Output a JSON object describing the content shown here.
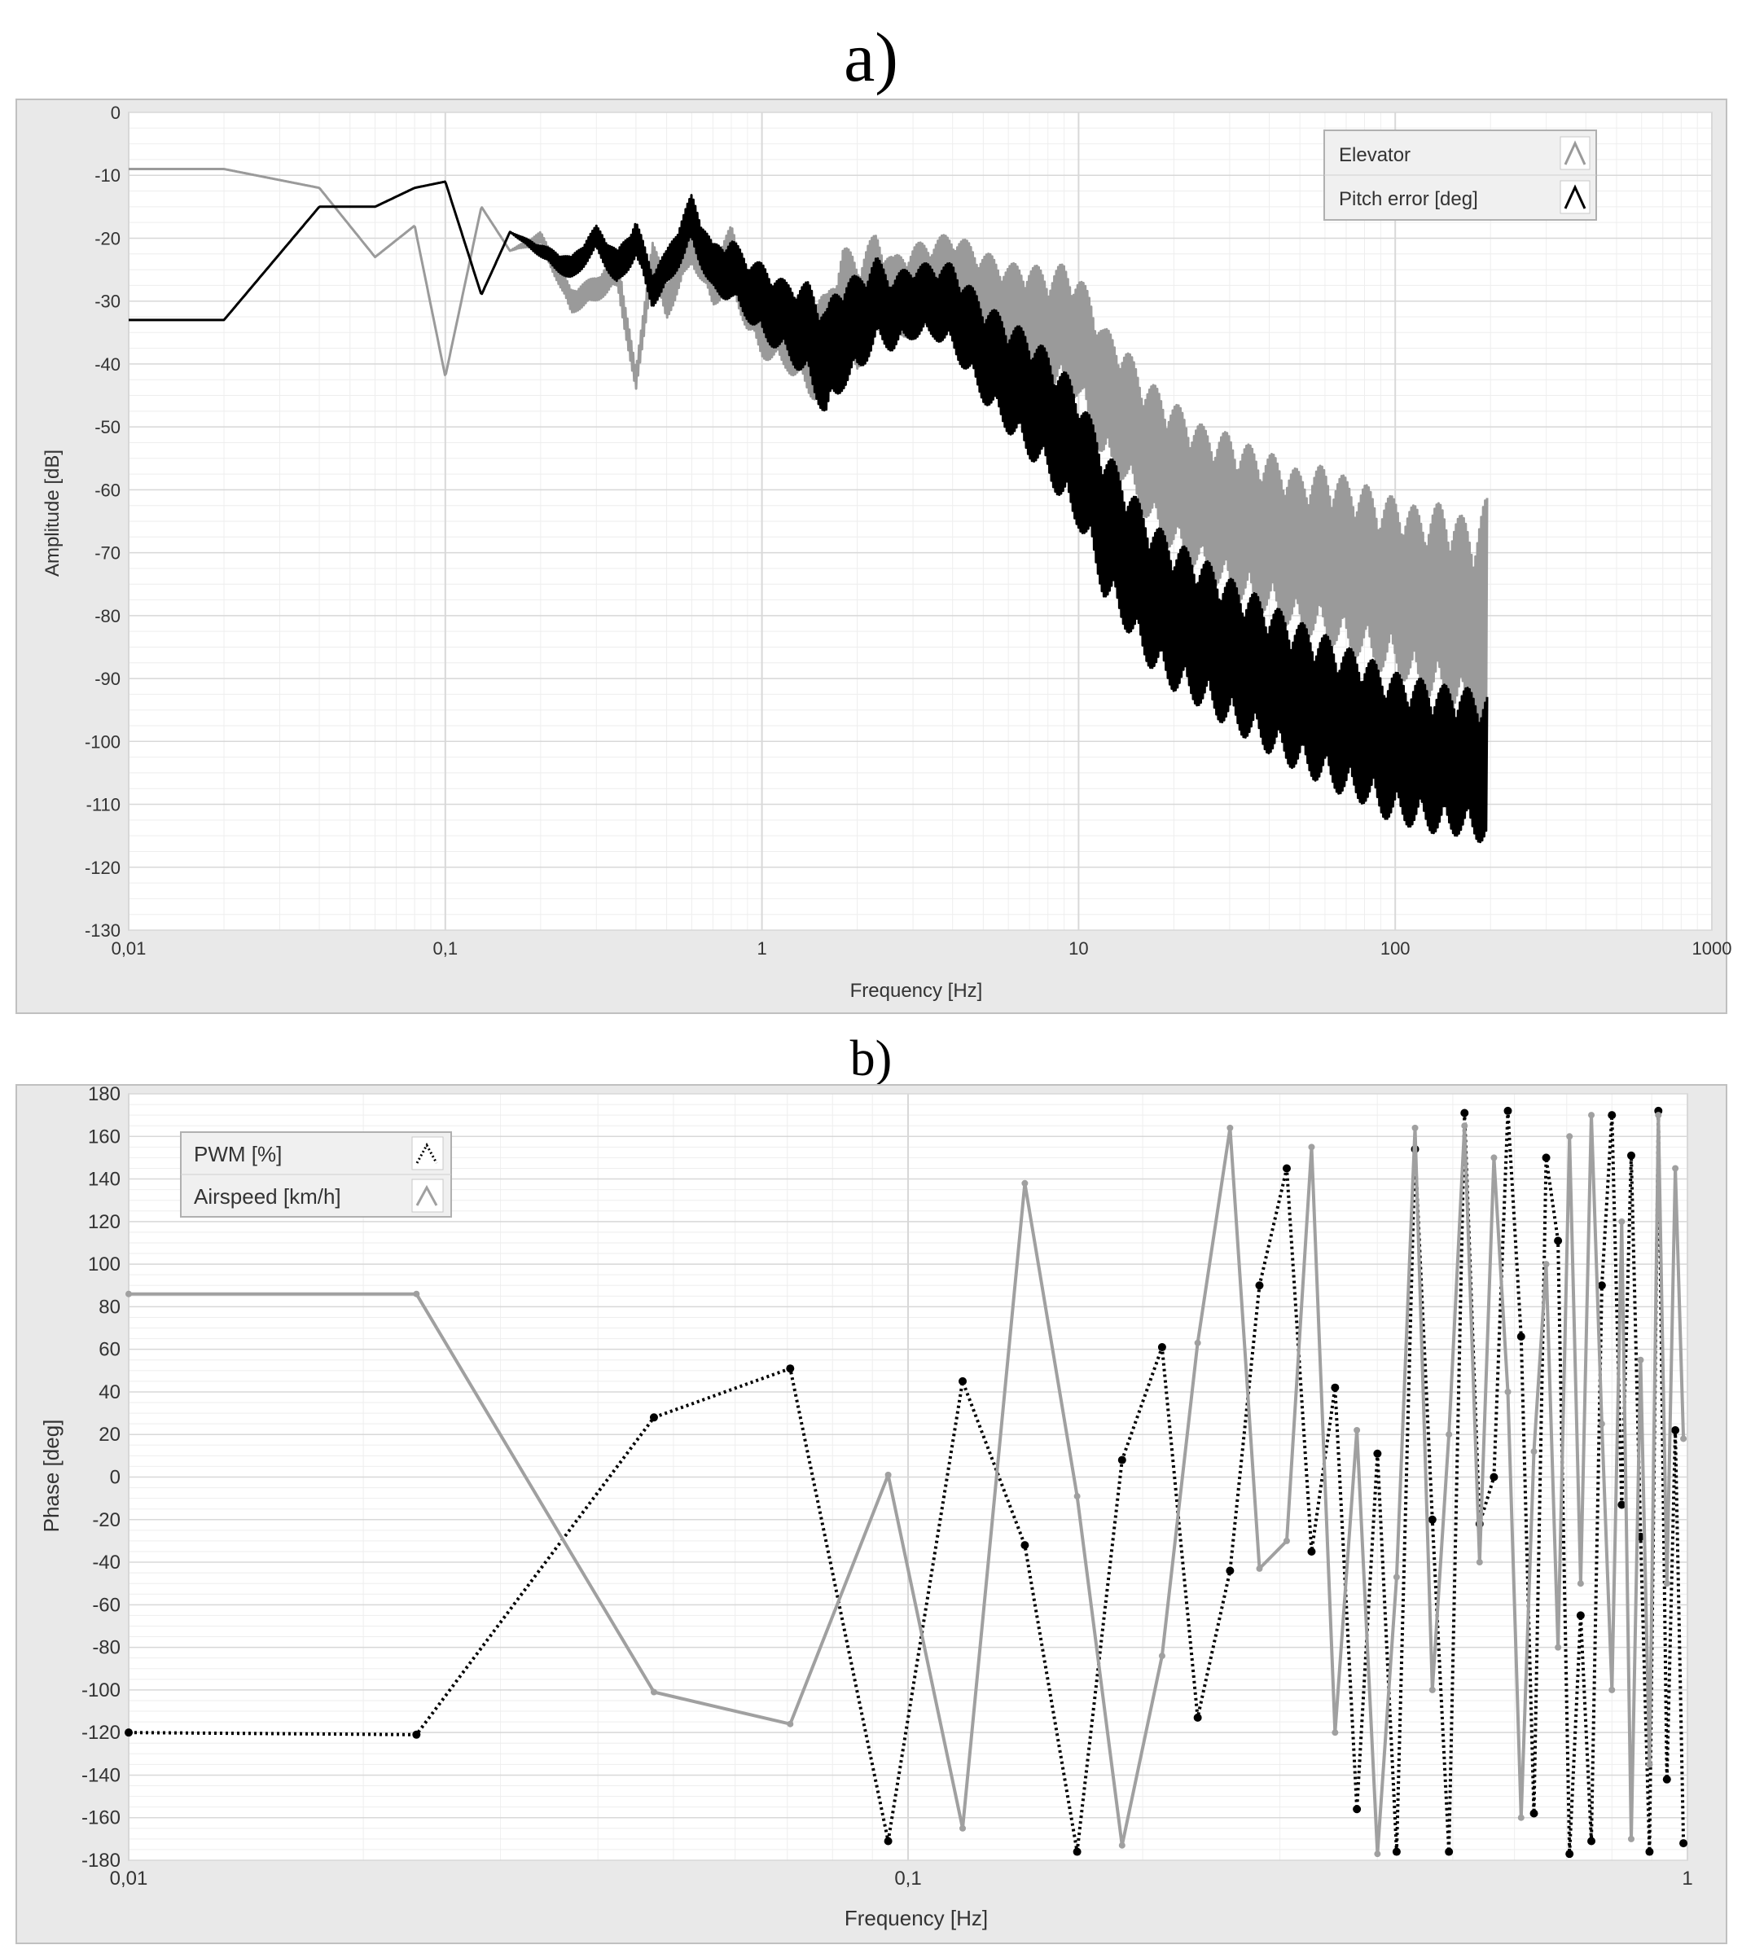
{
  "captions": {
    "a": "a)",
    "b": "b)"
  },
  "colors": {
    "elevator": "#9a9a9a",
    "pitch_error": "#000000",
    "pwm": "#000000",
    "airspeed": "#a0a0a0",
    "frame": "#e6e6e6",
    "grid_major": "#d8d8d8",
    "grid_minor": "#eeeeee"
  },
  "chart_data": [
    {
      "id": "a",
      "type": "line",
      "xscale": "log",
      "xlabel": "Frequency [Hz]",
      "ylabel": "Amplitude [dB]",
      "xlim": [
        0.01,
        1000
      ],
      "ylim": [
        -130,
        0
      ],
      "xticks": [
        0.01,
        0.1,
        1,
        10,
        100,
        1000
      ],
      "xtick_labels": [
        "0,01",
        "0,1",
        "1",
        "10",
        "100",
        "1000"
      ],
      "yticks": [
        0,
        -10,
        -20,
        -30,
        -40,
        -50,
        -60,
        -70,
        -80,
        -90,
        -100,
        -110,
        -120,
        -130
      ],
      "ytick_labels": [
        "0",
        "-10",
        "-20",
        "-30",
        "-40",
        "-50",
        "-60",
        "-70",
        "-80",
        "-90",
        "-100",
        "-110",
        "-120",
        "-130"
      ],
      "grid": true,
      "legend": "top-right",
      "series": [
        {
          "name": "Elevator",
          "style": "solid",
          "x": [
            0.01,
            0.02,
            0.04,
            0.06,
            0.08,
            0.1,
            0.13,
            0.16,
            0.2,
            0.25,
            0.3,
            0.35,
            0.4,
            0.45,
            0.5,
            0.6,
            0.7,
            0.8,
            0.9,
            1.0,
            1.2,
            1.4,
            1.6,
            1.8,
            2.0,
            2.3,
            2.6,
            3.0,
            3.5,
            4.0,
            5.0,
            6.0,
            7.0,
            8.0,
            9.0,
            10,
            11,
            12,
            14,
            16,
            18,
            20,
            25,
            30,
            35,
            40,
            50,
            60,
            70,
            80,
            90,
            100,
            120,
            140,
            160,
            180,
            195
          ],
          "y": [
            -9,
            -9,
            -12,
            -23,
            -18,
            -42,
            -15,
            -22,
            -20,
            -30,
            -28,
            -25,
            -43,
            -23,
            -30,
            -20,
            -27,
            -23,
            -30,
            -33,
            -35,
            -37,
            -38,
            -30,
            -32,
            -27,
            -30,
            -28,
            -27,
            -26,
            -30,
            -32,
            -33,
            -35,
            -34,
            -36,
            -40,
            -45,
            -48,
            -53,
            -56,
            -58,
            -62,
            -64,
            -66,
            -67,
            -70,
            -70,
            -72,
            -73,
            -75,
            -75,
            -78,
            -78,
            -80,
            -82,
            -83
          ],
          "spread": [
            0,
            0,
            0,
            0,
            0,
            0,
            0,
            0,
            1,
            2,
            2,
            3,
            2,
            3,
            3,
            4,
            4,
            5,
            5,
            6,
            6,
            8,
            9,
            9,
            9,
            8,
            7,
            7,
            7,
            7,
            8,
            8,
            9,
            10,
            10,
            10,
            11,
            11,
            11,
            11,
            12,
            12,
            12,
            13,
            13,
            13,
            13,
            14,
            14,
            14,
            14,
            14,
            15,
            16,
            16,
            17,
            22
          ]
        },
        {
          "name": "Pitch error [deg]",
          "style": "solid",
          "x": [
            0.01,
            0.02,
            0.04,
            0.06,
            0.08,
            0.1,
            0.13,
            0.16,
            0.2,
            0.25,
            0.3,
            0.35,
            0.4,
            0.45,
            0.5,
            0.6,
            0.7,
            0.8,
            0.9,
            1.0,
            1.2,
            1.4,
            1.6,
            1.8,
            2.0,
            2.3,
            2.6,
            3.0,
            3.5,
            4.0,
            5.0,
            6.0,
            7.0,
            8.0,
            9.0,
            10,
            11,
            12,
            14,
            16,
            18,
            20,
            25,
            30,
            35,
            40,
            50,
            60,
            70,
            80,
            90,
            100,
            120,
            140,
            160,
            180,
            195
          ],
          "y": [
            -33,
            -33,
            -15,
            -15,
            -12,
            -11,
            -29,
            -19,
            -22,
            -25,
            -20,
            -25,
            -20,
            -28,
            -25,
            -17,
            -25,
            -25,
            -28,
            -30,
            -33,
            -35,
            -40,
            -35,
            -34,
            -30,
            -32,
            -30,
            -30,
            -31,
            -38,
            -42,
            -45,
            -48,
            -52,
            -55,
            -60,
            -65,
            -70,
            -75,
            -78,
            -80,
            -83,
            -86,
            -88,
            -90,
            -93,
            -95,
            -97,
            -98,
            -100,
            -101,
            -102,
            -103,
            -103,
            -104,
            -104
          ],
          "spread": [
            0,
            0,
            0,
            0,
            0,
            0,
            0,
            0,
            1,
            2,
            2,
            3,
            3,
            3,
            3,
            4,
            4,
            5,
            5,
            6,
            6,
            8,
            9,
            9,
            8,
            7,
            6,
            6,
            6,
            7,
            8,
            9,
            10,
            10,
            11,
            11,
            11,
            12,
            12,
            12,
            12,
            12,
            12,
            12,
            12,
            12,
            12,
            12,
            12,
            12,
            12,
            12,
            12,
            12,
            12,
            12,
            12
          ]
        }
      ]
    },
    {
      "id": "b",
      "type": "line",
      "xscale": "log",
      "xlabel": "Frequency [Hz]",
      "ylabel": "Phase [deg]",
      "xlim": [
        0.01,
        1
      ],
      "ylim": [
        -180,
        180
      ],
      "xticks": [
        0.01,
        0.1,
        1
      ],
      "xtick_labels": [
        "0,01",
        "0,1",
        "1"
      ],
      "yticks": [
        180,
        160,
        140,
        120,
        100,
        80,
        60,
        40,
        20,
        0,
        -20,
        -40,
        -60,
        -80,
        -100,
        -120,
        -140,
        -160,
        -180
      ],
      "ytick_labels": [
        "180",
        "160",
        "140",
        "120",
        "100",
        "80",
        "60",
        "40",
        "20",
        "0",
        "-20",
        "-40",
        "-60",
        "-80",
        "-100",
        "-120",
        "-140",
        "-160",
        "-180"
      ],
      "grid": true,
      "legend": "top-left",
      "series": [
        {
          "name": "PWM [%]",
          "style": "dotted",
          "markers": true,
          "x": [
            0.01,
            0.0234,
            0.0472,
            0.0706,
            0.0943,
            0.1175,
            0.1412,
            0.1648,
            0.1882,
            0.2118,
            0.2353,
            0.2589,
            0.2824,
            0.3061,
            0.3294,
            0.3531,
            0.3766,
            0.4002,
            0.4235,
            0.4472,
            0.4707,
            0.4943,
            0.5176,
            0.5412,
            0.5646,
            0.5883,
            0.6118,
            0.6354,
            0.6588,
            0.6823,
            0.7058,
            0.7294,
            0.7529,
            0.7765,
            0.8,
            0.8236,
            0.847,
            0.8707,
            0.894,
            0.9177,
            0.9411,
            0.9648,
            0.9882
          ],
          "y": [
            -120,
            -121,
            28,
            51,
            -171,
            45,
            -32,
            -176,
            8,
            61,
            -113,
            -44,
            90,
            145,
            -35,
            42,
            -156,
            11,
            -176,
            154,
            -20,
            -176,
            171,
            -22,
            0,
            172,
            66,
            -158,
            150,
            111,
            -177,
            -65,
            -171,
            90,
            170,
            -13,
            151,
            -28,
            -176,
            172,
            -142,
            22,
            -172
          ]
        },
        {
          "name": "Airspeed [km/h]",
          "style": "solid",
          "markers": true,
          "x": [
            0.01,
            0.0234,
            0.0472,
            0.0706,
            0.0943,
            0.1175,
            0.1412,
            0.1648,
            0.1882,
            0.2118,
            0.2353,
            0.2589,
            0.2824,
            0.3061,
            0.3294,
            0.3531,
            0.3766,
            0.4002,
            0.4235,
            0.4472,
            0.4707,
            0.4943,
            0.5176,
            0.5412,
            0.5646,
            0.5883,
            0.6118,
            0.6354,
            0.6588,
            0.6823,
            0.7058,
            0.7294,
            0.7529,
            0.7765,
            0.8,
            0.8236,
            0.847,
            0.8707,
            0.894,
            0.9177,
            0.9411,
            0.9648,
            0.9882
          ],
          "y": [
            86,
            86,
            -101,
            -116,
            1,
            -165,
            138,
            -9,
            -173,
            -84,
            63,
            164,
            -43,
            -30,
            155,
            -120,
            22,
            -177,
            -47,
            164,
            -100,
            20,
            165,
            -40,
            150,
            40,
            -160,
            12,
            100,
            -80,
            160,
            -50,
            170,
            25,
            -100,
            120,
            -170,
            55,
            -135,
            170,
            -50,
            145,
            18
          ]
        }
      ]
    }
  ]
}
